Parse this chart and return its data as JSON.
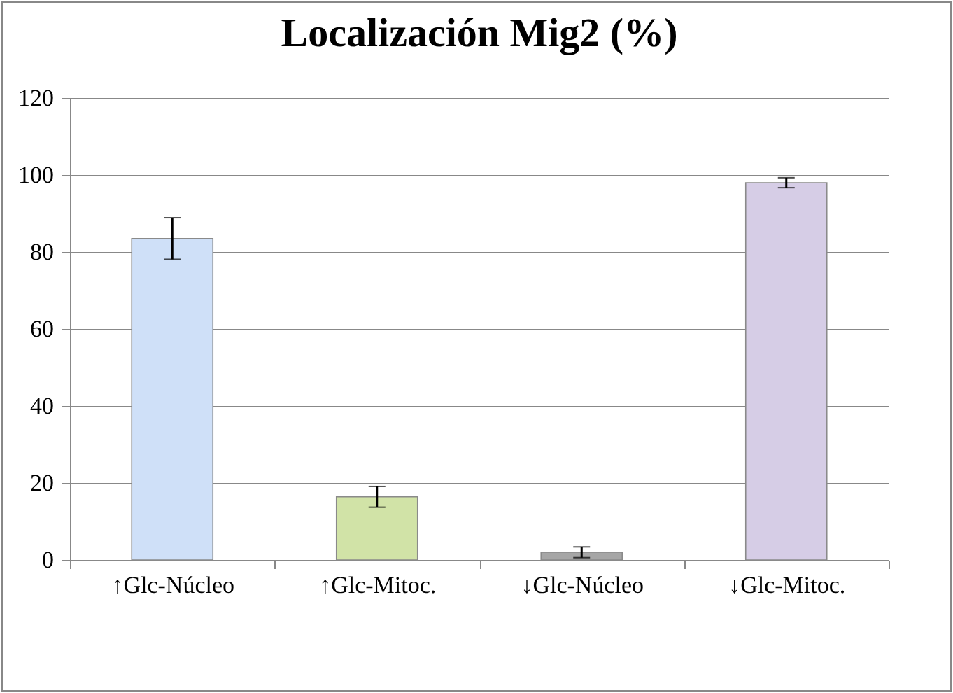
{
  "chart_data": {
    "type": "bar",
    "title": "Localización Mig2 (%)",
    "categories": [
      "↑Glc-Núcleo",
      "↑Glc-Mitoc.",
      "↓Glc-Núcleo",
      "↓Glc-Mitoc."
    ],
    "values": [
      83.5,
      16.4,
      2,
      98
    ],
    "errors": [
      5.4,
      2.7,
      1.4,
      1.3
    ],
    "colors": [
      "#cfe0f8",
      "#d1e3a7",
      "#a6a6a6",
      "#d6cde6"
    ],
    "ylim": [
      0,
      120
    ],
    "yticks": [
      0,
      20,
      40,
      60,
      80,
      100,
      120
    ],
    "grid": "y"
  }
}
